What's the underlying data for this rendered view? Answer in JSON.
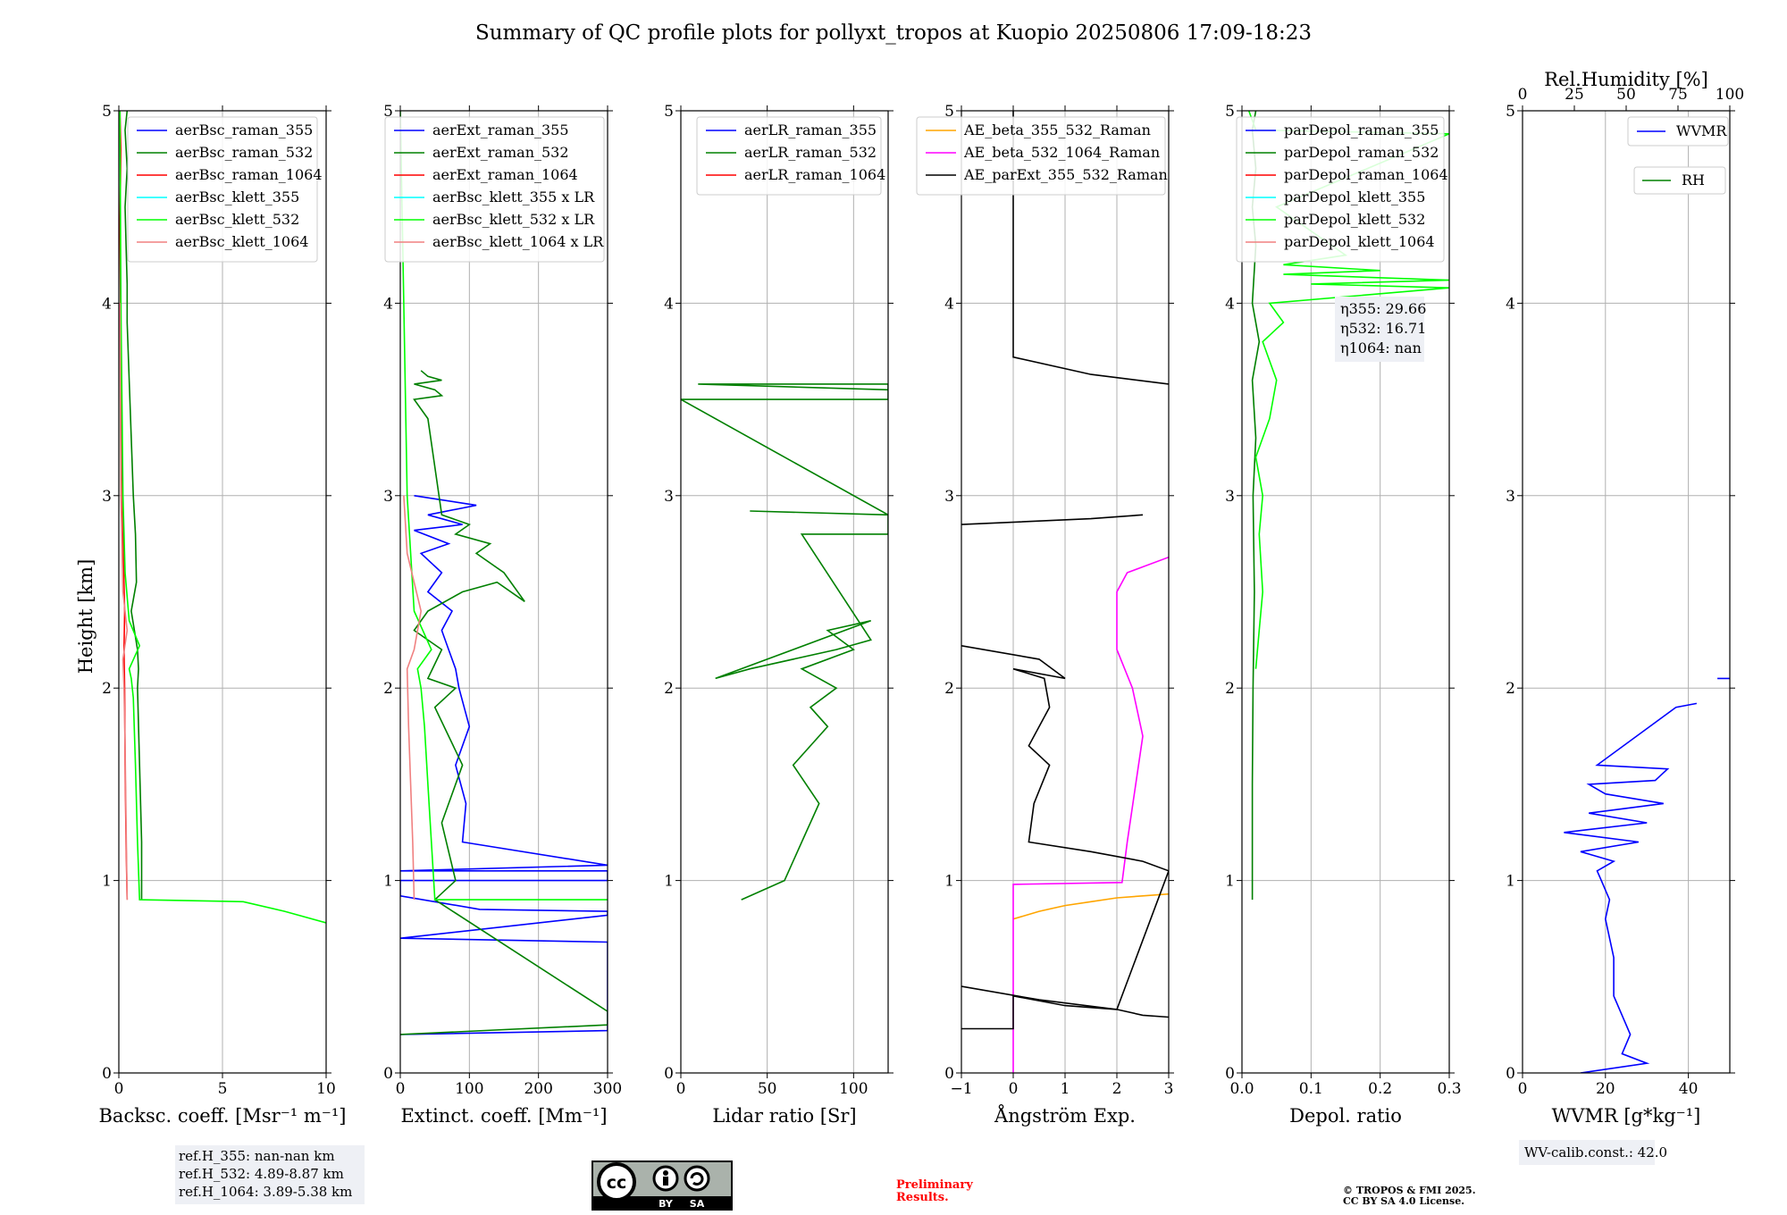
{
  "figure": {
    "title": "Summary of QC profile plots for pollyxt_tropos at Kuopio 20250806 17:09-18:23",
    "ylabel": "Height [km]",
    "ref_heights": [
      "ref.H_355: nan-nan km",
      "ref.H_532: 4.89-8.87 km",
      "ref.H_1064: 3.89-5.38 km"
    ],
    "license_badge": {
      "cc": "cc",
      "by": "BY",
      "sa": "SA"
    },
    "preliminary": [
      "Preliminary",
      "Results."
    ],
    "copyright": [
      "© TROPOS & FMI 2025.",
      "CC BY SA 4.0 License."
    ],
    "eta_lines": [
      "η355: 29.66",
      "η532: 16.71",
      "η1064: nan"
    ],
    "wv_calib": "WV-calib.const.: 42.0",
    "colors": {
      "blue": "#0000ff",
      "green": "#008000",
      "red": "#ff0000",
      "cyan": "#00ffff",
      "lime": "#00ff00",
      "salmon": "#f08080",
      "orange": "#ffa500",
      "magenta": "#ff00ff",
      "black": "#000000",
      "grid": "#b0b0b0"
    }
  },
  "chart_data": [
    {
      "type": "line",
      "xlabel": "Backsc. coeff. [Msr⁻¹ m⁻¹]",
      "ylabel": "Height [km]",
      "xlim": [
        0,
        10
      ],
      "ylim": [
        0,
        5
      ],
      "xticks": [
        0,
        5,
        10
      ],
      "yticks": [
        0,
        1,
        2,
        3,
        4,
        5
      ],
      "grid": true,
      "legend_loc": "top-right",
      "series": [
        {
          "name": "aerBsc_raman_355",
          "color": "blue",
          "x": [],
          "y": []
        },
        {
          "name": "aerBsc_raman_532",
          "color": "green",
          "x": [
            1.1,
            1.1,
            1.0,
            0.9,
            0.95,
            0.9,
            0.6,
            0.85,
            0.8,
            0.7,
            0.6,
            0.5,
            0.4,
            0.4,
            0.35,
            0.3,
            0.4,
            0.3,
            0.4
          ],
          "y": [
            0.9,
            1.2,
            1.6,
            2.0,
            2.1,
            2.2,
            2.4,
            2.55,
            2.8,
            3.0,
            3.3,
            3.6,
            3.9,
            4.1,
            4.3,
            4.5,
            4.7,
            4.9,
            5.0
          ]
        },
        {
          "name": "aerBsc_raman_1064",
          "color": "red",
          "x": [
            0.4,
            0.35,
            0.3,
            0.28,
            0.25,
            0.28,
            0.2,
            0.15,
            0.1,
            0.05,
            0.1,
            0.05
          ],
          "y": [
            0.9,
            1.2,
            1.6,
            2.0,
            2.2,
            2.4,
            2.8,
            3.2,
            3.8,
            4.4,
            4.8,
            5.0
          ]
        },
        {
          "name": "aerBsc_klett_355",
          "color": "cyan",
          "x": [],
          "y": []
        },
        {
          "name": "aerBsc_klett_532",
          "color": "lime",
          "x": [
            10,
            8,
            6,
            1.0,
            0.9,
            0.8,
            0.7,
            0.6,
            0.5,
            1.0,
            0.5,
            0.3,
            0.2,
            0.1,
            0.05
          ],
          "y": [
            0.78,
            0.84,
            0.89,
            0.9,
            1.2,
            1.6,
            1.95,
            2.05,
            2.1,
            2.22,
            2.35,
            2.6,
            3.0,
            4.0,
            5.0
          ]
        },
        {
          "name": "aerBsc_klett_1064",
          "color": "salmon",
          "x": [
            0.4,
            0.35,
            0.3,
            0.25,
            0.2,
            0.4,
            0.2,
            0.1,
            0.05
          ],
          "y": [
            0.9,
            1.3,
            1.7,
            2.0,
            2.15,
            2.3,
            2.5,
            3.0,
            4.0
          ]
        }
      ]
    },
    {
      "type": "line",
      "xlabel": "Extinct. coeff. [Mm⁻¹]",
      "xlim": [
        0,
        300
      ],
      "ylim": [
        0,
        5
      ],
      "xticks": [
        0,
        100,
        200,
        300
      ],
      "yticks": [
        0,
        1,
        2,
        3,
        4,
        5
      ],
      "grid": true,
      "legend_loc": "top-right",
      "series": [
        {
          "name": "aerExt_raman_355",
          "color": "blue",
          "x": [
            0,
            300,
            300,
            0,
            300,
            300,
            115,
            0,
            0,
            300,
            300,
            0,
            300,
            90,
            95,
            80,
            100,
            85,
            80,
            70,
            60,
            75,
            40,
            60,
            30,
            70,
            20,
            90,
            40,
            110,
            20
          ],
          "y": [
            0.2,
            0.22,
            0.68,
            0.7,
            0.82,
            0.84,
            0.85,
            0.92,
            1.0,
            1.0,
            1.05,
            1.05,
            1.08,
            1.2,
            1.4,
            1.6,
            1.8,
            2.0,
            2.1,
            2.2,
            2.3,
            2.4,
            2.5,
            2.6,
            2.7,
            2.75,
            2.82,
            2.85,
            2.9,
            2.95,
            3.0
          ]
        },
        {
          "name": "aerExt_raman_532",
          "color": "green",
          "x": [
            0,
            300,
            300,
            300,
            50,
            80,
            60,
            90,
            50,
            80,
            40,
            60,
            20,
            40,
            90,
            140,
            180,
            150,
            110,
            130,
            80,
            100,
            60,
            40,
            20,
            60,
            50,
            20,
            60,
            40,
            30
          ],
          "y": [
            0.2,
            0.25,
            0.3,
            0.32,
            0.9,
            1.0,
            1.3,
            1.6,
            1.9,
            2.0,
            2.05,
            2.2,
            2.3,
            2.4,
            2.5,
            2.55,
            2.45,
            2.6,
            2.7,
            2.75,
            2.8,
            2.85,
            2.9,
            3.4,
            3.5,
            3.52,
            3.55,
            3.58,
            3.6,
            3.62,
            3.65
          ]
        },
        {
          "name": "aerExt_raman_1064",
          "color": "red",
          "x": [],
          "y": []
        },
        {
          "name": "aerBsc_klett_355 x LR",
          "color": "cyan",
          "x": [],
          "y": []
        },
        {
          "name": "aerBsc_klett_532 x LR",
          "color": "lime",
          "x": [
            300,
            50,
            45,
            40,
            35,
            30,
            25,
            45,
            20,
            10,
            5,
            0
          ],
          "y": [
            0.9,
            0.9,
            1.2,
            1.5,
            1.8,
            2.0,
            2.1,
            2.2,
            2.4,
            3.0,
            4.0,
            5.0
          ]
        },
        {
          "name": "aerBsc_klett_1064 x LR",
          "color": "salmon",
          "x": [
            20,
            18,
            15,
            12,
            10,
            20,
            30,
            10,
            5
          ],
          "y": [
            0.9,
            1.2,
            1.5,
            1.8,
            2.1,
            2.2,
            2.4,
            2.7,
            3.0
          ]
        }
      ]
    },
    {
      "type": "line",
      "xlabel": "Lidar ratio [Sr]",
      "xlim": [
        0,
        120
      ],
      "ylim": [
        0,
        5
      ],
      "xticks": [
        0,
        50,
        100
      ],
      "yticks": [
        0,
        1,
        2,
        3,
        4,
        5
      ],
      "grid": true,
      "legend_loc": "top-center",
      "series": [
        {
          "name": "aerLR_raman_355",
          "color": "blue",
          "x": [],
          "y": []
        },
        {
          "name": "aerLR_raman_532",
          "color": "green",
          "x": [
            35,
            60,
            70,
            80,
            65,
            85,
            75,
            90,
            70,
            100,
            85,
            110,
            20,
            40,
            90,
            110,
            70,
            120,
            120,
            40,
            120,
            0,
            120,
            120,
            10,
            120
          ],
          "y": [
            0.9,
            1.0,
            1.2,
            1.4,
            1.6,
            1.8,
            1.9,
            2.0,
            2.1,
            2.2,
            2.3,
            2.35,
            2.05,
            2.1,
            2.2,
            2.25,
            2.8,
            2.8,
            2.9,
            2.92,
            2.9,
            3.5,
            3.5,
            3.58,
            3.58,
            3.55
          ]
        },
        {
          "name": "aerLR_raman_1064",
          "color": "red",
          "x": [],
          "y": []
        }
      ]
    },
    {
      "type": "line",
      "xlabel": "Ångström Exp.",
      "xlim": [
        -1,
        3
      ],
      "ylim": [
        0,
        5
      ],
      "xticks": [
        -1,
        0,
        1,
        2,
        3
      ],
      "yticks": [
        0,
        1,
        2,
        3,
        4,
        5
      ],
      "grid": true,
      "legend_loc": "top-right",
      "series": [
        {
          "name": "AE_beta_355_532_Raman",
          "color": "orange",
          "x": [
            0,
            0.5,
            1.0,
            1.5,
            2.0,
            2.5,
            3.0
          ],
          "y": [
            0.8,
            0.84,
            0.87,
            0.89,
            0.91,
            0.92,
            0.93
          ]
        },
        {
          "name": "AE_beta_532_1064_Raman",
          "color": "magenta",
          "x": [
            0,
            0,
            2.1,
            2.2,
            2.5,
            2.3,
            2.0,
            2.0,
            2.2,
            3.0
          ],
          "y": [
            0,
            0.98,
            0.99,
            1.2,
            1.75,
            2.0,
            2.2,
            2.5,
            2.6,
            2.68
          ]
        },
        {
          "name": "AE_parExt_355_532_Raman",
          "color": "black",
          "x": [
            -1,
            0,
            0,
            1.0,
            2.0,
            2.5,
            3.0,
            null,
            -1,
            0.5,
            2.0,
            3.0,
            2.5,
            1.5,
            0.3,
            0.4,
            0.7,
            0.3,
            0.7,
            0.6,
            0,
            1.0,
            0.5,
            -1,
            null,
            -1,
            1.5,
            2.5,
            null,
            0,
            0,
            1.5,
            3.0
          ],
          "y": [
            0.23,
            0.23,
            0.4,
            0.35,
            0.33,
            0.3,
            0.29,
            null,
            0.45,
            0.38,
            0.33,
            1.05,
            1.1,
            1.15,
            1.2,
            1.4,
            1.6,
            1.7,
            1.9,
            2.05,
            2.1,
            2.05,
            2.15,
            2.22,
            null,
            2.85,
            2.88,
            2.9,
            null,
            5.0,
            3.72,
            3.63,
            3.58
          ]
        }
      ]
    },
    {
      "type": "line",
      "xlabel": "Depol. ratio",
      "xlim": [
        0,
        0.3
      ],
      "ylim": [
        0,
        5
      ],
      "xticks": [
        0,
        0.1,
        0.2,
        0.3
      ],
      "xtick_labels": [
        "0.0",
        "0.1",
        "0.2",
        "0.3"
      ],
      "yticks": [
        0,
        1,
        2,
        3,
        4,
        5
      ],
      "grid": true,
      "legend_loc": "top-right",
      "series": [
        {
          "name": "parDepol_raman_355",
          "color": "blue",
          "x": [],
          "y": []
        },
        {
          "name": "parDepol_raman_532",
          "color": "green",
          "x": [
            0.015,
            0.015,
            0.016,
            0.018,
            0.016,
            0.02,
            0.015,
            0.025,
            0.015,
            0.02,
            0.015,
            0.02,
            0.015,
            0.02
          ],
          "y": [
            0.9,
            1.5,
            2.0,
            2.5,
            3.0,
            3.3,
            3.6,
            3.8,
            4.0,
            4.3,
            4.5,
            4.7,
            4.9,
            5.0
          ]
        },
        {
          "name": "parDepol_raman_1064",
          "color": "red",
          "x": [],
          "y": []
        },
        {
          "name": "parDepol_klett_355",
          "color": "cyan",
          "x": [],
          "y": []
        },
        {
          "name": "parDepol_klett_532",
          "color": "lime",
          "x": [
            0.02,
            0.025,
            0.03,
            0.025,
            0.03,
            0.02,
            0.04,
            0.05,
            0.03,
            0.06,
            0.04,
            0.3,
            0.1,
            0.3,
            0.06,
            0.2,
            0.06,
            0.15,
            0.05,
            0.3,
            0.02,
            0.01
          ],
          "y": [
            2.1,
            2.3,
            2.5,
            2.8,
            3.0,
            3.2,
            3.4,
            3.6,
            3.8,
            3.9,
            4.0,
            4.08,
            4.1,
            4.12,
            4.15,
            4.17,
            4.2,
            4.25,
            4.5,
            4.88,
            4.9,
            5.0
          ]
        },
        {
          "name": "parDepol_klett_1064",
          "color": "salmon",
          "x": [],
          "y": []
        }
      ]
    },
    {
      "type": "line",
      "xlabel": "WVMR [g*kg⁻¹]",
      "xlim": [
        0,
        50
      ],
      "ylim": [
        0,
        5
      ],
      "xticks": [
        0,
        20,
        40
      ],
      "yticks": [
        0,
        1,
        2,
        3,
        4,
        5
      ],
      "secondary_axis": {
        "label": "Rel.Humidity [%]",
        "xlim": [
          0,
          100
        ],
        "ticks": [
          0,
          25,
          50,
          75,
          100
        ]
      },
      "grid": true,
      "legend_loc": "top-right",
      "series": [
        {
          "name": "WVMR",
          "color": "blue",
          "x": [
            14,
            30,
            24,
            26,
            22,
            22,
            20,
            21,
            19,
            18,
            22,
            14,
            28,
            10,
            30,
            16,
            34,
            20,
            16,
            32,
            35,
            18,
            37,
            42,
            null,
            47,
            50
          ],
          "y": [
            0.0,
            0.05,
            0.1,
            0.2,
            0.4,
            0.6,
            0.8,
            0.9,
            1.0,
            1.05,
            1.1,
            1.15,
            1.2,
            1.25,
            1.3,
            1.35,
            1.4,
            1.45,
            1.5,
            1.52,
            1.58,
            1.6,
            1.9,
            1.92,
            null,
            2.05,
            2.05
          ]
        },
        {
          "name": "RH",
          "color": "green",
          "x": [],
          "y": []
        }
      ]
    }
  ]
}
